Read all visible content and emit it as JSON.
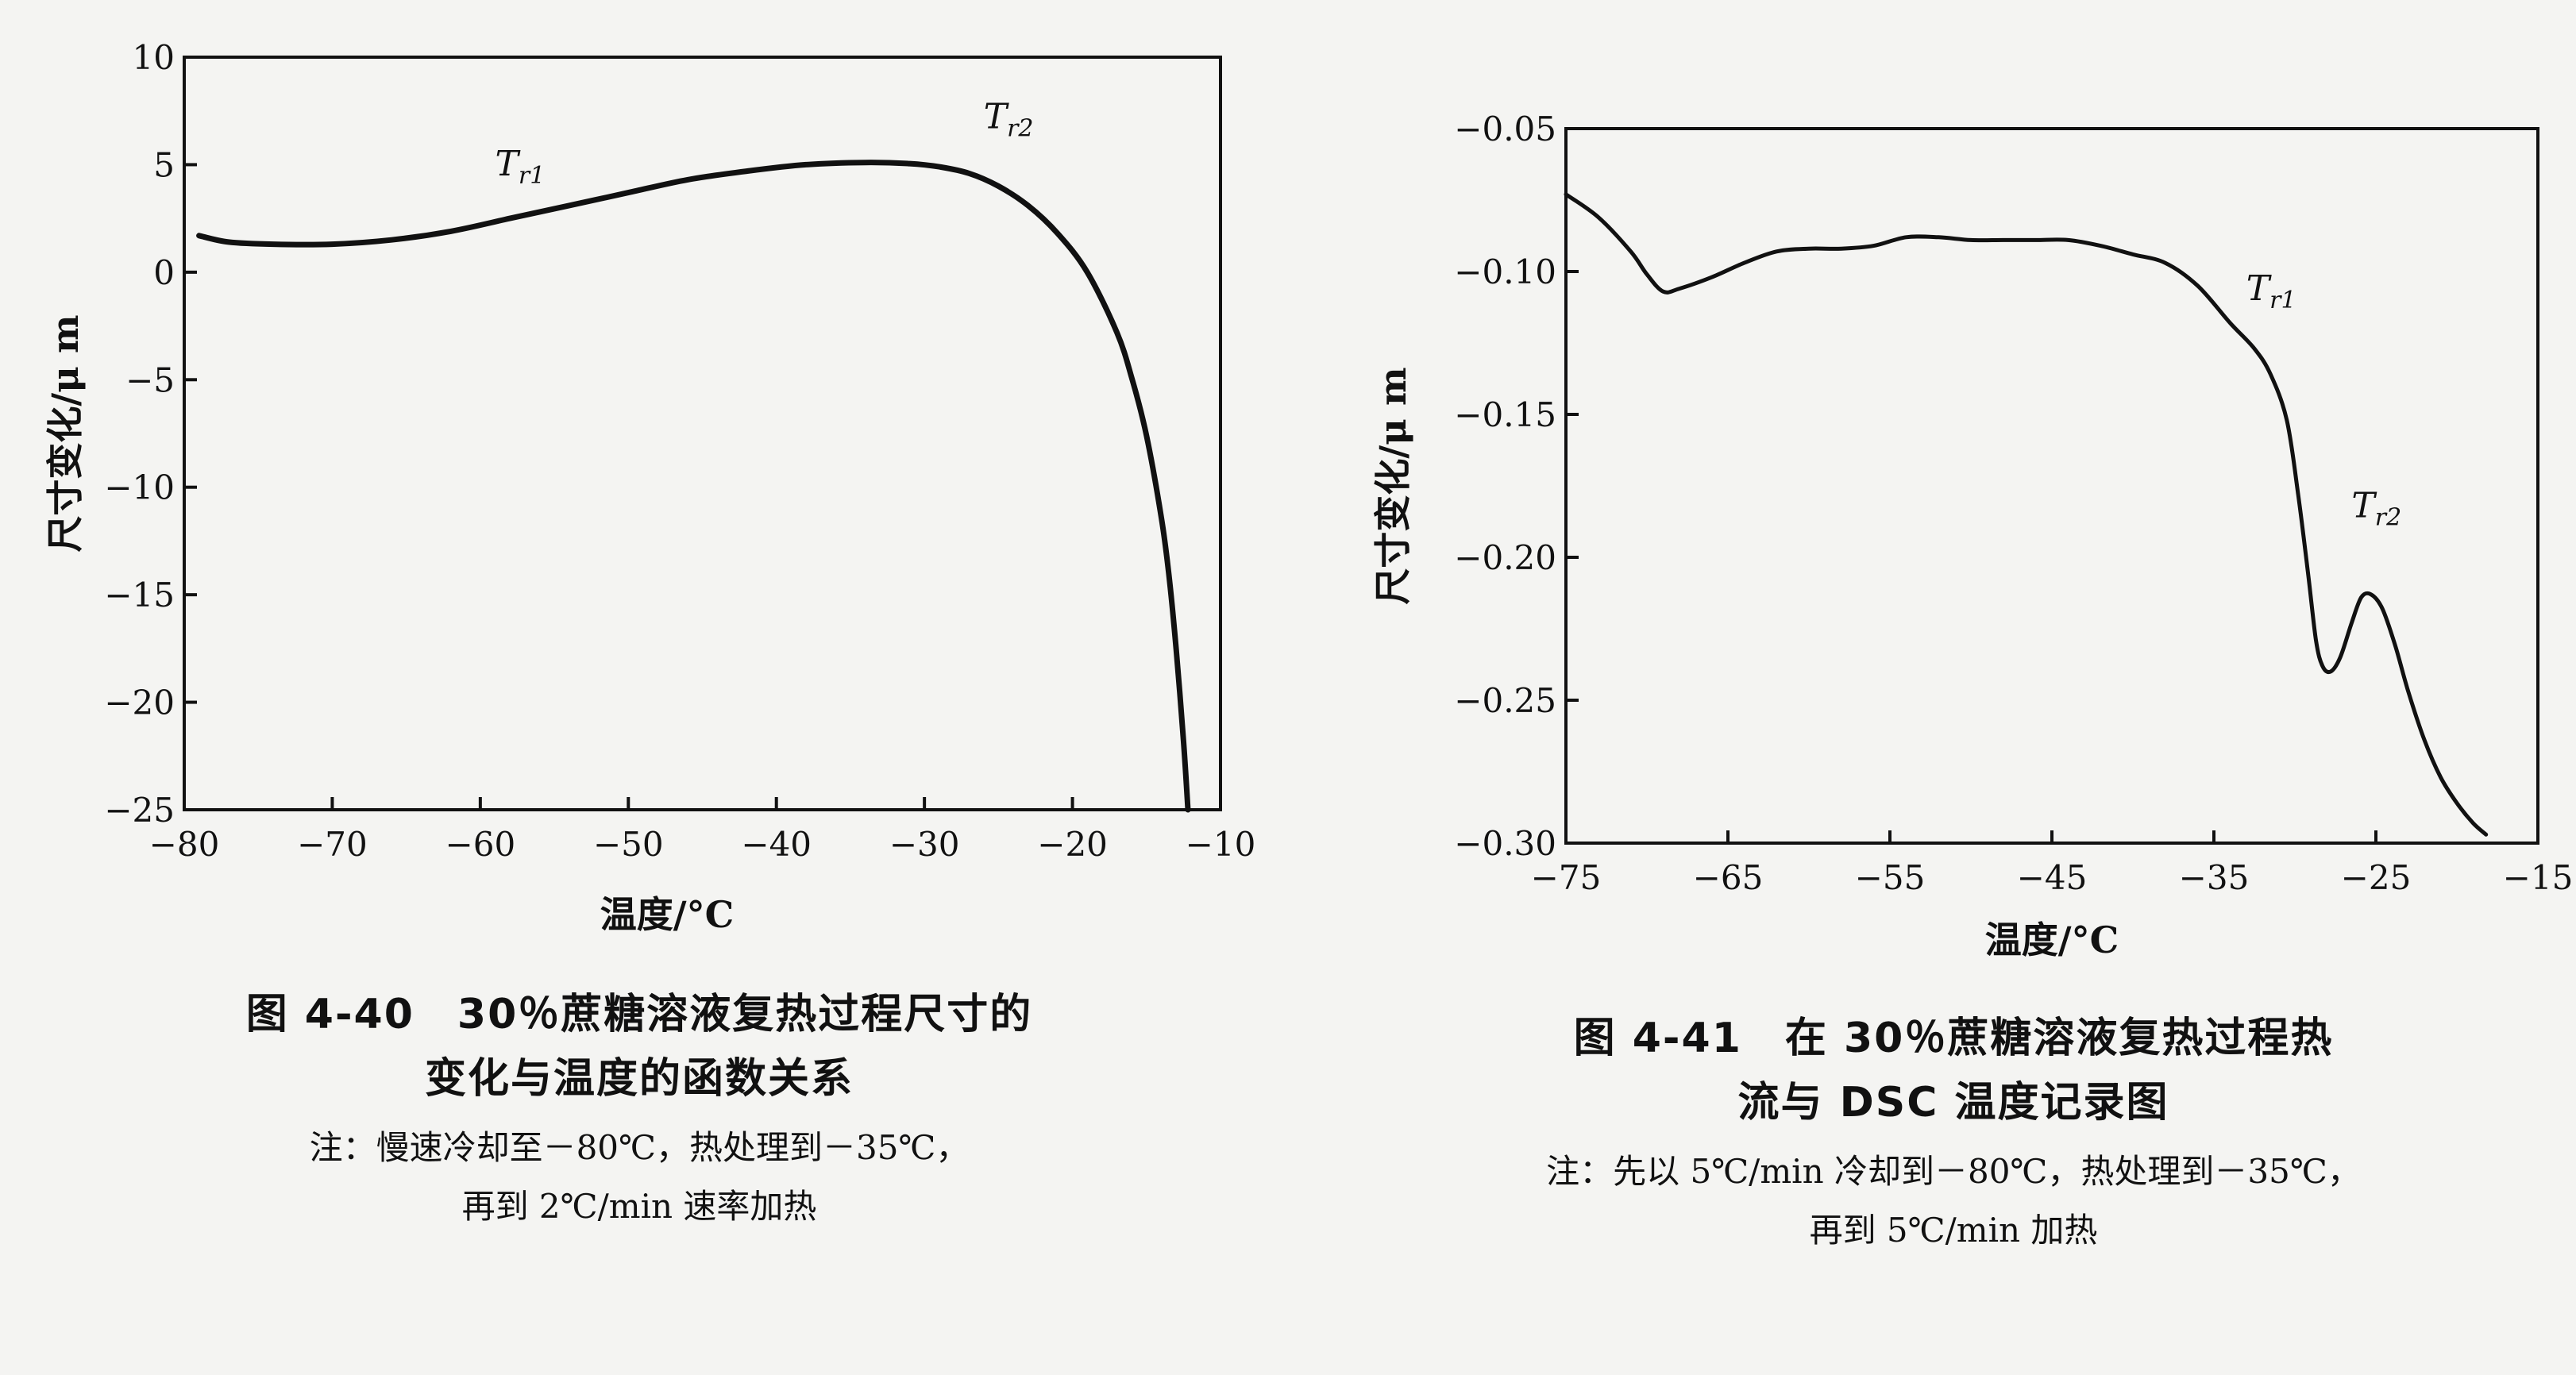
{
  "charts": [
    {
      "caption": {
        "title_line1": "图 4-40　30％蔗糖溶液复热过程尺寸的",
        "title_line2": "变化与温度的函数关系",
        "note_line1": "注：慢速冷却至－80℃，热处理到－35℃，",
        "note_line2": "再到 2℃/min 速率加热"
      }
    },
    {
      "caption": {
        "title_line1": "图 4-41　在 30％蔗糖溶液复热过程热",
        "title_line2": "流与 DSC 温度记录图",
        "note_line1": "注：先以 5℃/min 冷却到－80℃，热处理到－35℃，",
        "note_line2": "再到 5℃/min 加热"
      }
    }
  ],
  "chart_data": [
    {
      "type": "line",
      "title": "",
      "xlabel": "温度/°C",
      "ylabel": "尺寸变化/μ m",
      "xlim": [
        -80,
        -10
      ],
      "ylim": [
        -25,
        10
      ],
      "xticks": [
        -80,
        -70,
        -60,
        -50,
        -40,
        -30,
        -20,
        -10
      ],
      "xtick_labels": [
        "−80",
        "−70",
        "−60",
        "−50",
        "−40",
        "−30",
        "−20",
        "−10"
      ],
      "yticks": [
        10,
        5,
        0,
        -5,
        -10,
        -15,
        -20,
        -25
      ],
      "ytick_labels": [
        "10",
        "5",
        "0",
        "−5",
        "−10",
        "−15",
        "−20",
        "−25"
      ],
      "grid": false,
      "series": [
        {
          "x": [
            -79,
            -77,
            -74,
            -70,
            -66,
            -62,
            -58,
            -54,
            -50,
            -46,
            -42,
            -38,
            -34,
            -31,
            -29,
            -27,
            -25,
            -23,
            -21,
            -19,
            -17,
            -16,
            -15,
            -14,
            -13.5,
            -13,
            -12.5,
            -12.2
          ],
          "y": [
            1.7,
            1.4,
            1.3,
            1.3,
            1.5,
            1.9,
            2.5,
            3.1,
            3.7,
            4.3,
            4.7,
            5.0,
            5.1,
            5.05,
            4.9,
            4.6,
            4.0,
            3.1,
            1.8,
            0.0,
            -2.8,
            -4.9,
            -7.6,
            -11.4,
            -14.0,
            -17.5,
            -21.8,
            -25.0
          ]
        }
      ],
      "annotations": [
        {
          "label": "T",
          "sub": "r1",
          "x": -59,
          "y": 4.5
        },
        {
          "label": "T",
          "sub": "r2",
          "x": -26,
          "y": 6.7
        }
      ]
    },
    {
      "type": "line",
      "title": "",
      "xlabel": "温度/°C",
      "ylabel": "尺寸变化/μ m",
      "xlim": [
        -75,
        -15
      ],
      "ylim": [
        -0.3,
        -0.05
      ],
      "xticks": [
        -75,
        -65,
        -55,
        -45,
        -35,
        -25,
        -15
      ],
      "xtick_labels": [
        "−75",
        "−65",
        "−55",
        "−45",
        "−35",
        "−25",
        "−15"
      ],
      "yticks": [
        -0.05,
        -0.1,
        -0.15,
        -0.2,
        -0.25,
        -0.3
      ],
      "ytick_labels": [
        "−0.05",
        "−0.10",
        "−0.15",
        "−0.20",
        "−0.25",
        "−0.30"
      ],
      "grid": false,
      "series": [
        {
          "x": [
            -75,
            -73,
            -71,
            -70,
            -69,
            -68,
            -66,
            -64,
            -62,
            -60,
            -58,
            -56,
            -54,
            -52,
            -50,
            -48,
            -46,
            -44,
            -42,
            -40,
            -38,
            -36,
            -34,
            -32.5,
            -31.5,
            -30.5,
            -29.8,
            -29.2,
            -28.7,
            -28.3,
            -27.8,
            -27.2,
            -26.5,
            -25.9,
            -25.3,
            -24.6,
            -23.8,
            -23,
            -22,
            -21,
            -20,
            -19,
            -18.2
          ],
          "y": [
            -0.073,
            -0.081,
            -0.093,
            -0.101,
            -0.107,
            -0.106,
            -0.102,
            -0.097,
            -0.093,
            -0.092,
            -0.092,
            -0.091,
            -0.088,
            -0.088,
            -0.089,
            -0.089,
            -0.089,
            -0.089,
            -0.091,
            -0.094,
            -0.097,
            -0.105,
            -0.118,
            -0.127,
            -0.136,
            -0.152,
            -0.178,
            -0.205,
            -0.229,
            -0.238,
            -0.24,
            -0.235,
            -0.223,
            -0.214,
            -0.213,
            -0.218,
            -0.231,
            -0.247,
            -0.264,
            -0.277,
            -0.286,
            -0.293,
            -0.297
          ]
        }
      ],
      "annotations": [
        {
          "label": "T",
          "sub": "r1",
          "x": -33,
          "y": -0.11
        },
        {
          "label": "T",
          "sub": "r2",
          "x": -26.5,
          "y": -0.186
        }
      ]
    }
  ]
}
